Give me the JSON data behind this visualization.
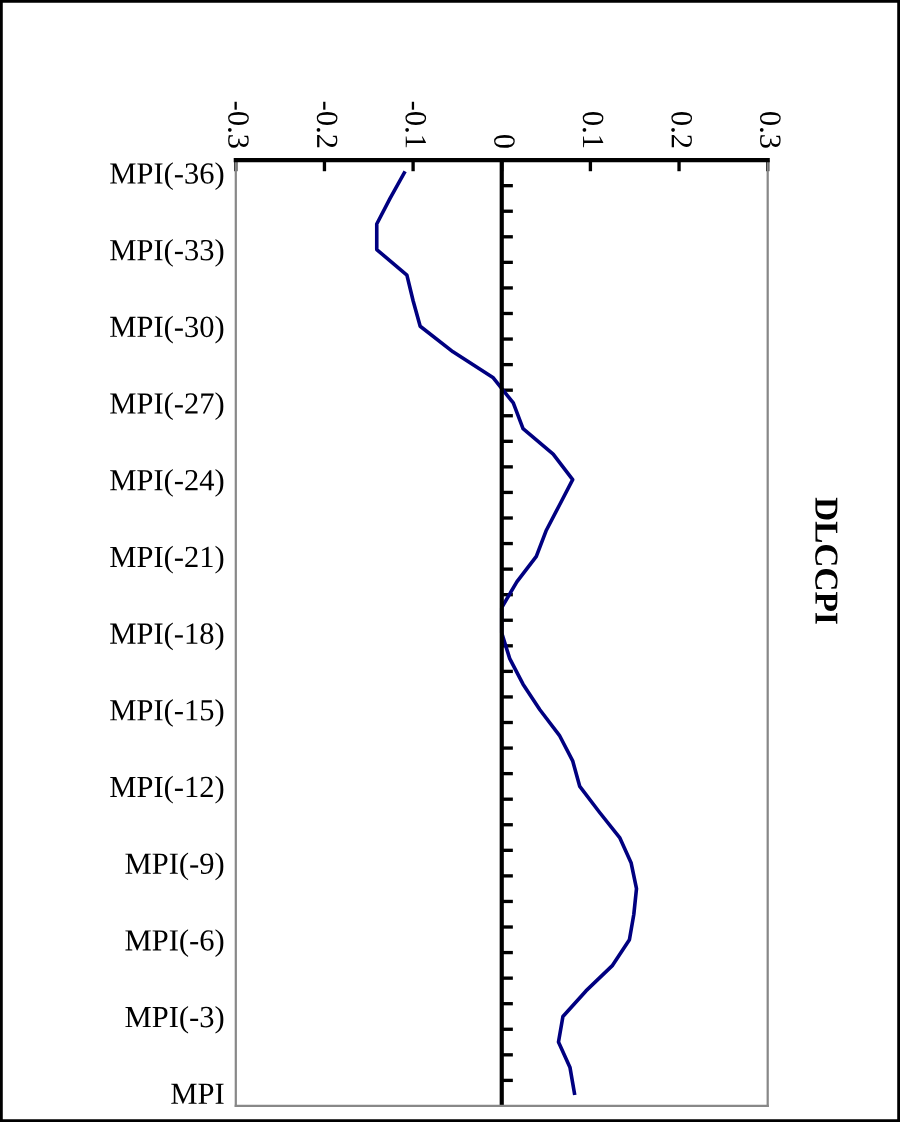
{
  "chart_data": {
    "type": "line",
    "orientation": "horizontal",
    "title": "DLCCPI",
    "categories": [
      "MPI(-36)",
      null,
      null,
      "MPI(-33)",
      null,
      null,
      "MPI(-30)",
      null,
      null,
      "MPI(-27)",
      null,
      null,
      "MPI(-24)",
      null,
      null,
      "MPI(-21)",
      null,
      null,
      "MPI(-18)",
      null,
      null,
      "MPI(-15)",
      null,
      null,
      "MPI(-12)",
      null,
      null,
      "MPI(-9)",
      null,
      null,
      "MPI(-6)",
      null,
      null,
      "MPI(-3)",
      null,
      null,
      "MPI"
    ],
    "values": [
      -0.11,
      -0.126,
      -0.141,
      -0.141,
      -0.107,
      -0.1,
      -0.092,
      -0.055,
      -0.01,
      0.013,
      0.024,
      0.058,
      0.08,
      0.065,
      0.05,
      0.039,
      0.017,
      0.0,
      0.0,
      0.009,
      0.024,
      0.043,
      0.065,
      0.08,
      0.088,
      0.11,
      0.133,
      0.146,
      0.152,
      0.149,
      0.144,
      0.125,
      0.095,
      0.069,
      0.064,
      0.077,
      0.082
    ],
    "color": "#000080",
    "xlim": [
      -0.3,
      0.3
    ],
    "xticks": [
      -0.3,
      -0.2,
      -0.1,
      0,
      0.1,
      0.2,
      0.3
    ],
    "ref_lines": [
      {
        "axis": "x",
        "value": 0,
        "color": "#000000"
      }
    ]
  }
}
